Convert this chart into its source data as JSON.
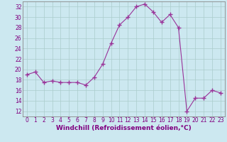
{
  "x": [
    0,
    1,
    2,
    3,
    4,
    5,
    6,
    7,
    8,
    9,
    10,
    11,
    12,
    13,
    14,
    15,
    16,
    17,
    18,
    19,
    20,
    21,
    22,
    23
  ],
  "y": [
    19.0,
    19.5,
    17.5,
    17.8,
    17.5,
    17.5,
    17.5,
    17.0,
    18.5,
    21.0,
    25.0,
    28.5,
    30.0,
    32.0,
    32.5,
    31.0,
    29.0,
    30.5,
    28.0,
    12.0,
    14.5,
    14.5,
    16.0,
    15.5
  ],
  "line_color": "#993399",
  "marker": "+",
  "marker_size": 4,
  "bg_color": "#cce8f0",
  "grid_color": "#aacccc",
  "axis_color": "#888888",
  "xlabel": "Windchill (Refroidissement éolien,°C)",
  "ylabel": "",
  "title": "",
  "ylim": [
    11,
    33
  ],
  "xlim": [
    -0.5,
    23.5
  ],
  "yticks": [
    12,
    14,
    16,
    18,
    20,
    22,
    24,
    26,
    28,
    30,
    32
  ],
  "xticks": [
    0,
    1,
    2,
    3,
    4,
    5,
    6,
    7,
    8,
    9,
    10,
    11,
    12,
    13,
    14,
    15,
    16,
    17,
    18,
    19,
    20,
    21,
    22,
    23
  ],
  "label_color": "#800080",
  "tick_color": "#800080",
  "xlabel_fontsize": 6.5,
  "tick_fontsize": 5.5
}
